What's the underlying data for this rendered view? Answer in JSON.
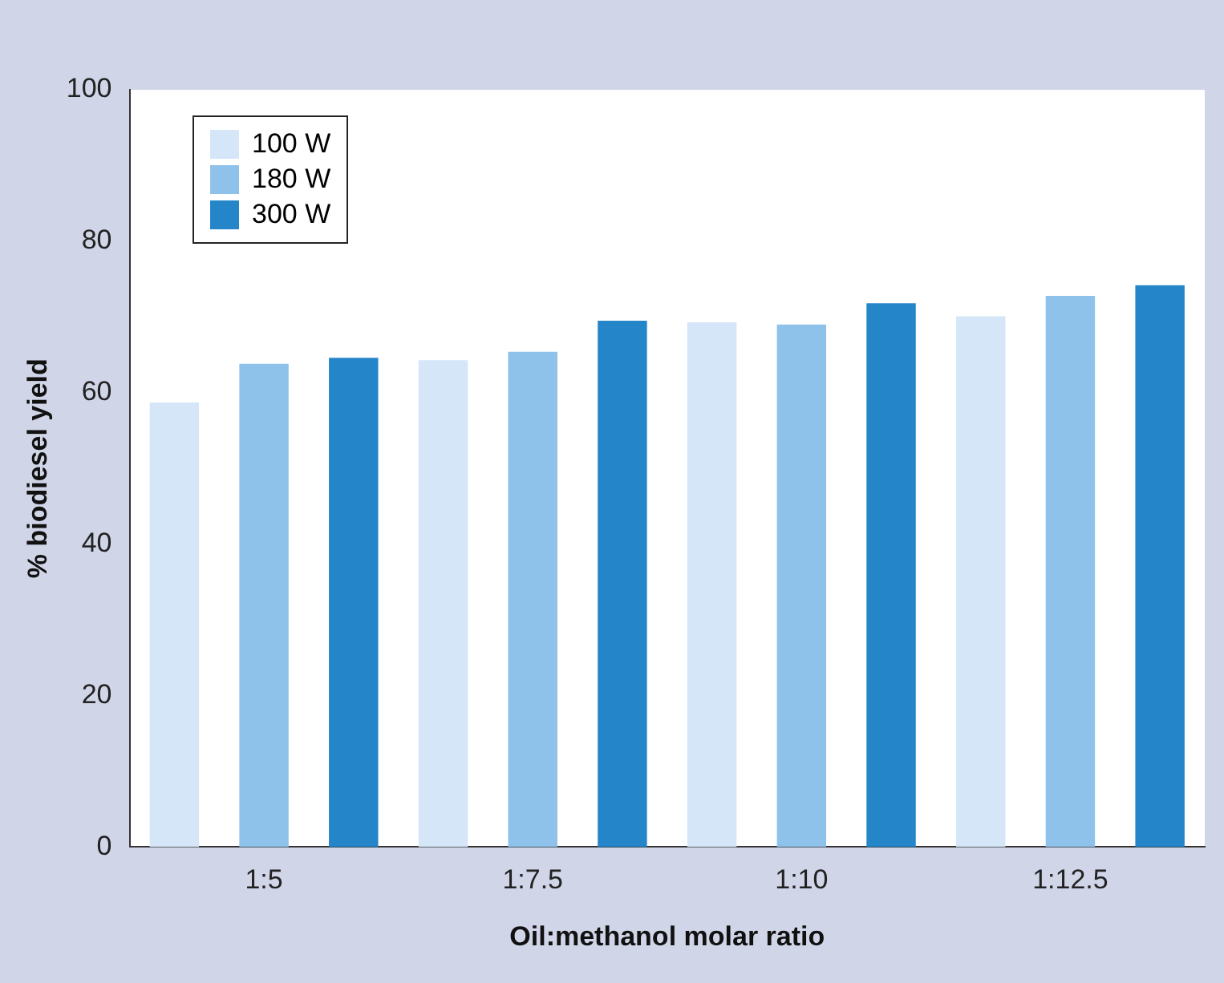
{
  "chart_data": {
    "type": "bar",
    "xlabel": "Oil:methanol molar ratio",
    "ylabel": "% biodiesel yield",
    "categories": [
      "1:5",
      "1:7.5",
      "1:10",
      "1:12.5"
    ],
    "series": [
      {
        "name": "100 W",
        "color": "#d4e6f7",
        "values": [
          58.7,
          64.3,
          69.3,
          70.1
        ]
      },
      {
        "name": "180 W",
        "color": "#8fc2ea",
        "values": [
          63.8,
          65.4,
          69.0,
          72.8
        ]
      },
      {
        "name": "300 W",
        "color": "#2485c9",
        "values": [
          64.6,
          69.5,
          71.8,
          74.2
        ]
      }
    ],
    "ylim": [
      0,
      100
    ],
    "yticks": [
      0,
      20,
      40,
      60,
      80,
      100
    ],
    "grid": false,
    "legend": "top left"
  }
}
